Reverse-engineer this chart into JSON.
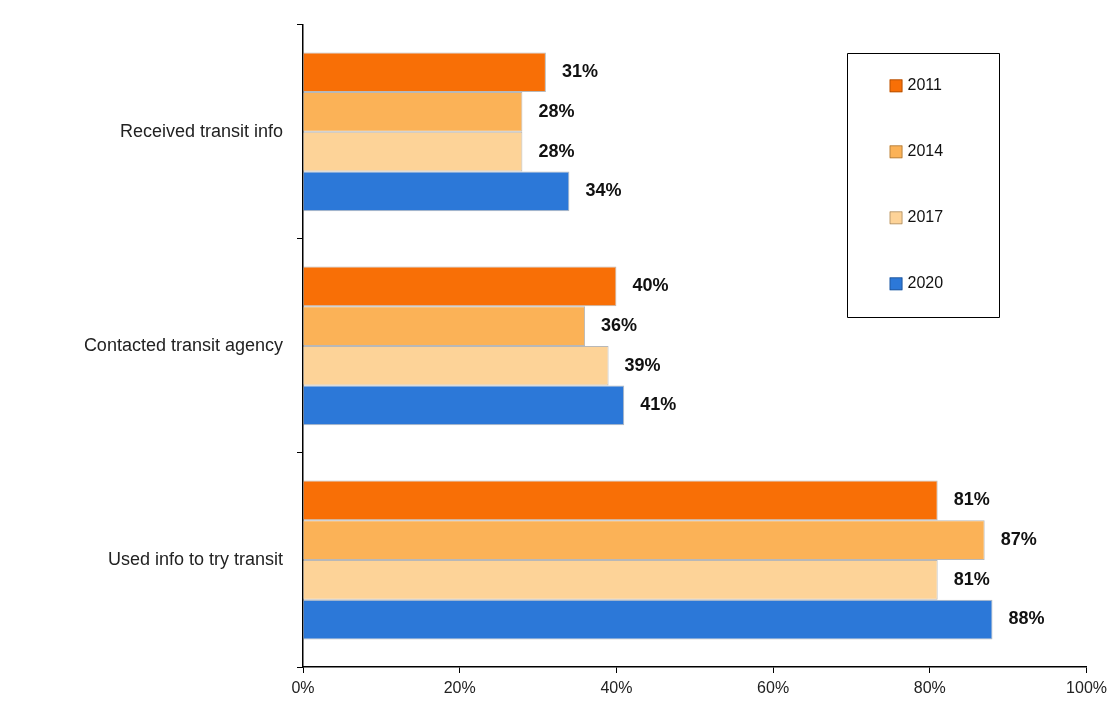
{
  "chart_data": {
    "type": "bar",
    "orientation": "horizontal",
    "categories": [
      "Received transit info",
      "Contacted transit agency",
      "Used info to try transit"
    ],
    "series": [
      {
        "name": "2011",
        "color": "#f86f06",
        "values": [
          31,
          40,
          81
        ],
        "value_labels": [
          "31%",
          "40%",
          "81%"
        ]
      },
      {
        "name": "2014",
        "color": "#fbb257",
        "values": [
          28,
          36,
          87
        ],
        "value_labels": [
          "28%",
          "36%",
          "87%"
        ]
      },
      {
        "name": "2017",
        "color": "#fdd398",
        "values": [
          28,
          39,
          81
        ],
        "value_labels": [
          "28%",
          "39%",
          "81%"
        ]
      },
      {
        "name": "2020",
        "color": "#2c78d8",
        "values": [
          34,
          41,
          88
        ],
        "value_labels": [
          "34%",
          "41%",
          "88%"
        ]
      }
    ],
    "xlim": [
      0,
      100
    ],
    "xticks": [
      {
        "value": 0,
        "label": "0%"
      },
      {
        "value": 20,
        "label": "20%"
      },
      {
        "value": 40,
        "label": "40%"
      },
      {
        "value": 60,
        "label": "60%"
      },
      {
        "value": 80,
        "label": "80%"
      },
      {
        "value": 100,
        "label": "100%"
      }
    ],
    "legend": "top right",
    "grid": false
  }
}
